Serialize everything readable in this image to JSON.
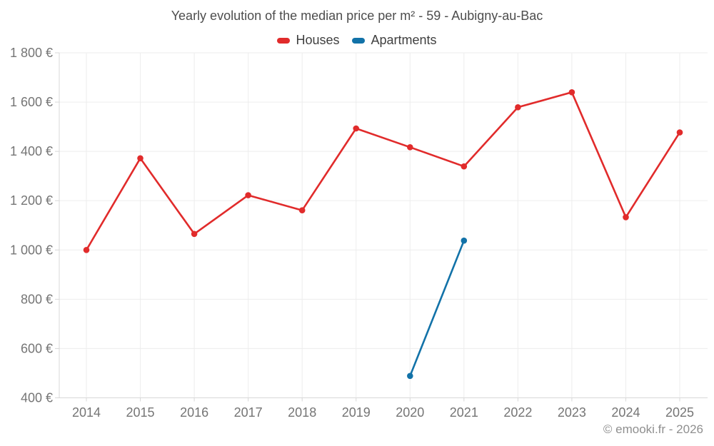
{
  "chart_data": {
    "type": "line",
    "title": "Yearly evolution of the median price per m² - 59 - Aubigny-au-Bac",
    "categories": [
      "2014",
      "2015",
      "2016",
      "2017",
      "2018",
      "2019",
      "2020",
      "2021",
      "2022",
      "2023",
      "2024",
      "2025"
    ],
    "series": [
      {
        "name": "Houses",
        "color": "#e12b2b",
        "values": [
          1000,
          1372,
          1065,
          1222,
          1161,
          1493,
          1417,
          1339,
          1579,
          1640,
          1133,
          1477
        ]
      },
      {
        "name": "Apartments",
        "color": "#1272a8",
        "values": [
          null,
          null,
          null,
          null,
          null,
          null,
          489,
          1038,
          null,
          null,
          null,
          null
        ]
      }
    ],
    "ylim": [
      400,
      1800
    ],
    "yticks": [
      {
        "value": 400,
        "label": "400 €"
      },
      {
        "value": 600,
        "label": "600 €"
      },
      {
        "value": 800,
        "label": "800 €"
      },
      {
        "value": 1000,
        "label": "1 000 €"
      },
      {
        "value": 1200,
        "label": "1 200 €"
      },
      {
        "value": 1400,
        "label": "1 400 €"
      },
      {
        "value": 1600,
        "label": "1 600 €"
      },
      {
        "value": 1800,
        "label": "1 800 €"
      }
    ],
    "grid": true,
    "legend_position": "top",
    "xlabel": "",
    "ylabel": ""
  },
  "footer": {
    "copyright": "© emooki.fr - 2026"
  },
  "colors": {
    "grid": "#ededed",
    "axis": "#d8d8d8",
    "tick_label": "#757575",
    "title_text": "#4d4d4d",
    "legend_text": "#3f3f3f",
    "footer_text": "#8f8f8f",
    "background": "#ffffff"
  }
}
